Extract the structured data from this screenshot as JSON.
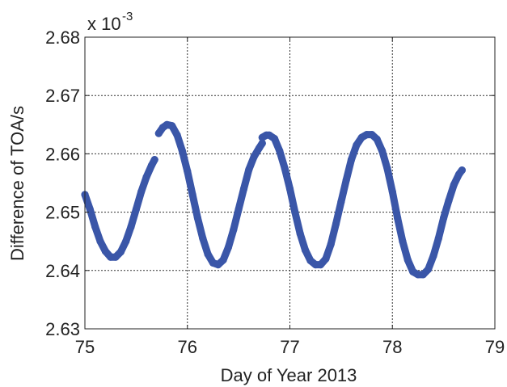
{
  "chart_data": {
    "type": "scatter",
    "xlabel": "Day of Year 2013",
    "ylabel": "Difference of TOA/s",
    "y_multiplier_base": "x 10",
    "y_multiplier_exponent": "-3",
    "xlim": [
      75,
      79
    ],
    "ylim": [
      2.63,
      2.68
    ],
    "x_ticks": [
      "75",
      "76",
      "77",
      "78",
      "79"
    ],
    "y_ticks": [
      "2.63",
      "2.64",
      "2.65",
      "2.66",
      "2.67",
      "2.68"
    ],
    "grid": true,
    "marker_color": "#3A56A8",
    "segments": [
      {
        "x": [
          75.0,
          75.05,
          75.1,
          75.15,
          75.2,
          75.25,
          75.3,
          75.35,
          75.4,
          75.45,
          75.5,
          75.55,
          75.6,
          75.65,
          75.68
        ],
        "y": [
          2.653,
          2.6505,
          2.6475,
          2.645,
          2.6433,
          2.6423,
          2.6423,
          2.6432,
          2.645,
          2.6475,
          2.6505,
          2.6535,
          2.656,
          2.658,
          2.659
        ]
      },
      {
        "x": [
          75.72,
          75.76,
          75.8,
          75.85,
          75.9,
          75.95,
          76.0,
          76.05,
          76.1,
          76.15,
          76.2,
          76.25,
          76.3,
          76.35,
          76.4,
          76.45,
          76.5,
          76.55,
          76.6,
          76.65,
          76.7,
          76.73
        ],
        "y": [
          2.6635,
          2.6645,
          2.665,
          2.6648,
          2.6632,
          2.6605,
          2.657,
          2.653,
          2.649,
          2.6455,
          2.6428,
          2.6413,
          2.641,
          2.6418,
          2.644,
          2.647,
          2.6505,
          2.654,
          2.6573,
          2.6595,
          2.661,
          2.6618
        ]
      },
      {
        "x": [
          76.73,
          76.77,
          76.8,
          76.85,
          76.9,
          76.95,
          77.0,
          77.05,
          77.1,
          77.15,
          77.2,
          77.25,
          77.3,
          77.35,
          77.4,
          77.45,
          77.5,
          77.55,
          77.6,
          77.65,
          77.7,
          77.75,
          77.8,
          77.85,
          77.9,
          77.95,
          78.0,
          78.05,
          78.1,
          78.15,
          78.2,
          78.25,
          78.3,
          78.35,
          78.4,
          78.45,
          78.5,
          78.55,
          78.6,
          78.65,
          78.68
        ],
        "y": [
          2.6628,
          2.6632,
          2.6632,
          2.6626,
          2.6605,
          2.6575,
          2.654,
          2.65,
          2.6463,
          2.6435,
          2.6417,
          2.641,
          2.641,
          2.642,
          2.6445,
          2.648,
          2.6518,
          2.6555,
          2.659,
          2.6615,
          2.6628,
          2.6633,
          2.6633,
          2.6625,
          2.6605,
          2.6575,
          2.6535,
          2.649,
          2.645,
          2.6418,
          2.6398,
          2.6393,
          2.6393,
          2.6402,
          2.6425,
          2.6455,
          2.649,
          2.652,
          2.6547,
          2.6565,
          2.6572
        ]
      }
    ]
  }
}
